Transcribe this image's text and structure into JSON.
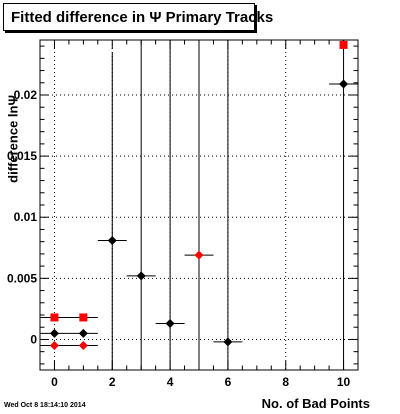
{
  "header": {
    "title": "Fitted difference in  Ψ  Primary Tracks"
  },
  "footer": {
    "timestamp": "Wed Oct  8 18:14:10 2014"
  },
  "chart_data": {
    "type": "scatter",
    "title": "Fitted difference in  Ψ  Primary Tracks",
    "xlabel": "No. of Bad Points",
    "ylabel": "difference lnΨ",
    "xlim": [
      -0.5,
      10.5
    ],
    "ylim": [
      -0.0025,
      0.0245
    ],
    "grid": true,
    "x_ticks": [
      {
        "value": 0,
        "label": "0"
      },
      {
        "value": 2,
        "label": "2"
      },
      {
        "value": 4,
        "label": "4"
      },
      {
        "value": 6,
        "label": "6"
      },
      {
        "value": 8,
        "label": "8"
      },
      {
        "value": 10,
        "label": "10"
      }
    ],
    "y_ticks": [
      {
        "value": 0,
        "label": "0"
      },
      {
        "value": 0.005,
        "label": "0.005"
      },
      {
        "value": 0.01,
        "label": "0.01"
      },
      {
        "value": 0.015,
        "label": "0.015"
      },
      {
        "value": 0.02,
        "label": "0.02"
      }
    ],
    "series": [
      {
        "marker": "diamond",
        "color": "#000000",
        "points": [
          {
            "x": 0,
            "y": 0.0005,
            "xerr": 0.5,
            "yerr_low": 0,
            "yerr_high": 0
          },
          {
            "x": 1,
            "y": 0.0005,
            "xerr": 0.5,
            "yerr_low": 0,
            "yerr_high": 0
          },
          {
            "x": 2,
            "y": 0.0081,
            "xerr": 0.5,
            "yerr_low": 0.0106,
            "yerr_high": 0.0154
          },
          {
            "x": 3,
            "y": 0.0052,
            "xerr": 0.5,
            "yerr_low": 0.0077,
            "yerr_high": 0.0193
          },
          {
            "x": 4,
            "y": 0.0013,
            "xerr": 0.5,
            "yerr_low": 0.0038,
            "yerr_high": 0.0232
          },
          {
            "x": 6,
            "y": -0.0002,
            "xerr": 0.5,
            "yerr_low": 0.0023,
            "yerr_high": 0.0247
          },
          {
            "x": 10,
            "y": 0.0209,
            "xerr": 0.5,
            "yerr_low": 0.0234,
            "yerr_high": 0.0036
          }
        ]
      },
      {
        "marker": "diamond",
        "color": "#ff0000",
        "points": [
          {
            "x": 0,
            "y": -0.0005,
            "xerr": 0.5,
            "yerr_low": 0,
            "yerr_high": 0
          },
          {
            "x": 1,
            "y": -0.0005,
            "xerr": 0.5,
            "yerr_low": 0,
            "yerr_high": 0
          },
          {
            "x": 5,
            "y": 0.0069,
            "xerr": 0.5,
            "yerr_low": 0.0094,
            "yerr_high": 0.0176
          }
        ]
      },
      {
        "marker": "square",
        "color": "#ff0000",
        "points": [
          {
            "x": 0,
            "y": 0.0018,
            "xerr": 0.5,
            "yerr_low": 0,
            "yerr_high": 0
          },
          {
            "x": 1,
            "y": 0.0018,
            "xerr": 0.5,
            "yerr_low": 0,
            "yerr_high": 0
          },
          {
            "x": 10,
            "y": 0.0241,
            "xerr": 0,
            "yerr_low": 0,
            "yerr_high": 0
          }
        ]
      }
    ]
  }
}
